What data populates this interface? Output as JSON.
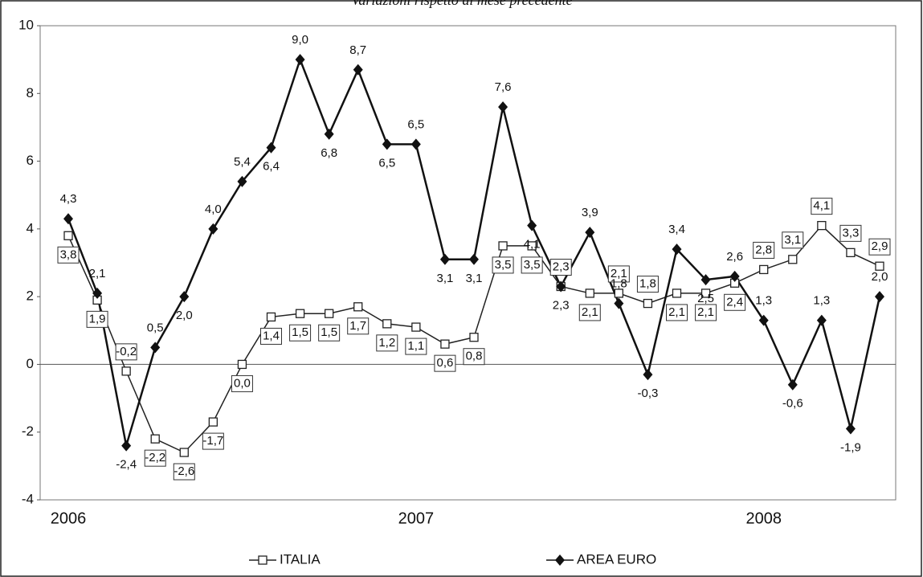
{
  "chart_data": {
    "type": "line",
    "title": "Variazioni rispetto al mese precedente",
    "categories": [
      "2006",
      null,
      null,
      null,
      null,
      null,
      null,
      null,
      null,
      null,
      null,
      null,
      "2007",
      null,
      null,
      null,
      null,
      null,
      null,
      null,
      null,
      null,
      null,
      null,
      "2008",
      null,
      null,
      null,
      null
    ],
    "series": [
      {
        "name": "ITALIA",
        "color": "#222222",
        "marker": "square-open",
        "values": [
          3.8,
          1.9,
          -0.2,
          -2.2,
          -2.6,
          -1.7,
          0.0,
          1.4,
          1.5,
          1.5,
          1.7,
          1.2,
          1.1,
          0.6,
          0.8,
          3.5,
          3.5,
          2.3,
          2.1,
          2.1,
          1.8,
          2.1,
          2.1,
          2.4,
          2.8,
          3.1,
          4.1,
          3.3,
          2.9
        ],
        "value_labels": [
          "3,8",
          "1,9",
          "-0,2",
          "-2,2",
          "-2,6",
          "-1,7",
          "0,0",
          "1,4",
          "1,5",
          "1,5",
          "1,7",
          "1,2",
          "1,1",
          "0,6",
          "0,8",
          "3,5",
          "3,5",
          "2,3",
          "2,1",
          "2,1",
          "1,8",
          "2,1",
          "2,1",
          "2,4",
          "2,8",
          "3,1",
          "4,1",
          "3,3",
          "2,9"
        ]
      },
      {
        "name": "AREA EURO",
        "color": "#111111",
        "marker": "diamond",
        "values": [
          4.3,
          2.1,
          -2.4,
          0.5,
          2.0,
          4.0,
          5.4,
          6.4,
          9.0,
          6.8,
          8.7,
          6.5,
          6.5,
          3.1,
          3.1,
          7.6,
          4.1,
          2.3,
          3.9,
          1.8,
          -0.3,
          3.4,
          2.5,
          2.6,
          1.3,
          -0.6,
          1.3,
          -1.9,
          2.0
        ],
        "value_labels": [
          "4,3",
          "2,1",
          "-2,4",
          "0,5",
          "2,0",
          "4,0",
          "5,4",
          "6,4",
          "9,0",
          "6,8",
          "8,7",
          "6,5",
          "6,5",
          "3,1",
          "3,1",
          "7,6",
          "4,1",
          "2,3",
          "3,9",
          "1,8",
          "-0,3",
          "3,4",
          "2,5",
          "2,6",
          "1,3",
          "-0,6",
          "1,3",
          "-1,9",
          "2,0"
        ]
      }
    ],
    "ylim": [
      -4,
      10
    ],
    "yticks": [
      -4,
      -2,
      0,
      2,
      4,
      6,
      8,
      10
    ],
    "grid": false,
    "legend": "bottom"
  }
}
